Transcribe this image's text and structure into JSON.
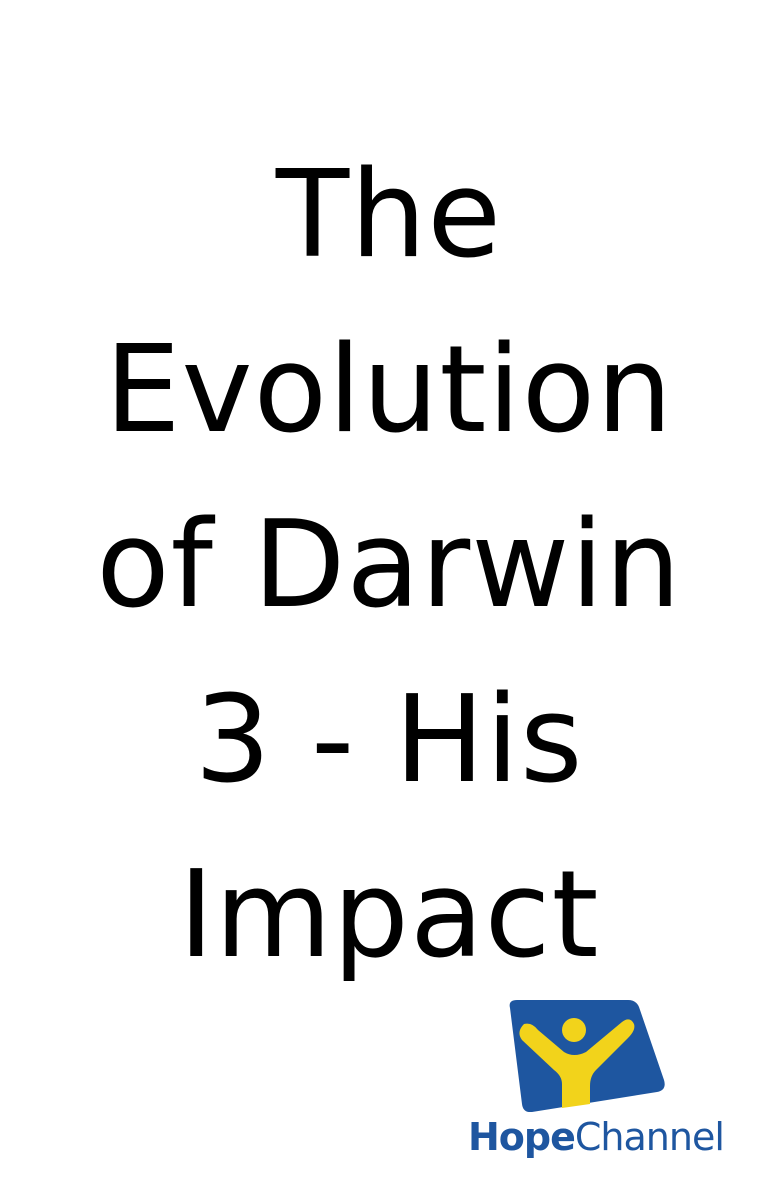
{
  "title": {
    "lines": [
      "The",
      "Evolution",
      "of Darwin",
      "3 - His",
      "Impact"
    ]
  },
  "logo": {
    "word_bold": "Hope",
    "word_regular": "Channel",
    "icon": "hope-channel-figure-icon",
    "colors": {
      "blue": "#1e56a0",
      "yellow": "#f2d31b",
      "text": "#1e56a0"
    }
  }
}
